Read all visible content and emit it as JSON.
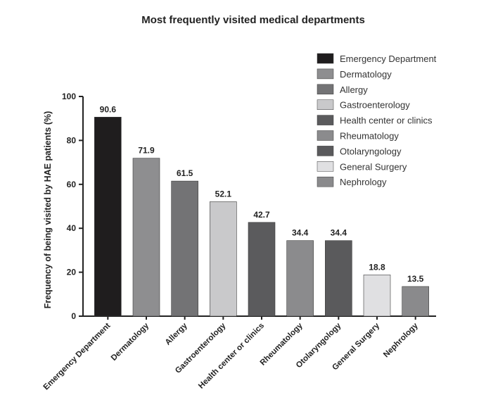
{
  "chart_data": {
    "type": "bar",
    "title": "Most frequently visited medical departments",
    "xlabel": "",
    "ylabel": "Frequency of being visited by HAE patients (%)",
    "ylim": [
      0,
      100
    ],
    "yticks": [
      0,
      20,
      40,
      60,
      80,
      100
    ],
    "categories": [
      "Emergency Department",
      "Dermatology",
      "Allergy",
      "Gastroenterology",
      "Health center or clinics",
      "Rheumatology",
      "Otolaryngology",
      "General Surgery",
      "Nephrology"
    ],
    "values": [
      90.6,
      71.9,
      61.5,
      52.1,
      42.7,
      34.4,
      34.4,
      18.8,
      13.5
    ],
    "value_labels": [
      "90.6",
      "71.9",
      "61.5",
      "52.1",
      "42.7",
      "34.4",
      "34.4",
      "18.8",
      "13.5"
    ],
    "colors": [
      "#1f1d1e",
      "#8e8e90",
      "#737375",
      "#c9c9cb",
      "#5b5b5d",
      "#8b8b8d",
      "#5a5a5c",
      "#e0e0e2",
      "#8a8a8c"
    ],
    "legend_position": "top-right",
    "grid": false
  }
}
